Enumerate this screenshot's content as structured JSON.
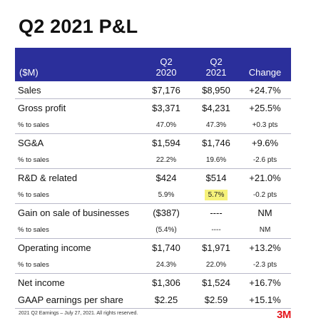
{
  "title": "Q2 2021 P&L",
  "table": {
    "headers": {
      "label": "($M)",
      "q2_2020": [
        "Q2",
        "2020"
      ],
      "q2_2021": [
        "Q2",
        "2021"
      ],
      "change": "Change"
    },
    "rows": [
      {
        "label": "Sales",
        "q2_2020": "$7,176",
        "q2_2021": "$8,950",
        "change": "+24.7%"
      },
      {
        "label": "Gross profit",
        "q2_2020": "$3,371",
        "q2_2021": "$4,231",
        "change": "+25.5%"
      },
      {
        "label": "% to sales",
        "q2_2020": "47.0%",
        "q2_2021": "47.3%",
        "change": "+0.3 pts"
      },
      {
        "label": "SG&A",
        "q2_2020": "$1,594",
        "q2_2021": "$1,746",
        "change": "+9.6%"
      },
      {
        "label": "% to sales",
        "q2_2020": "22.2%",
        "q2_2021": "19.6%",
        "change": "-2.6 pts"
      },
      {
        "label": "R&D & related",
        "q2_2020": "$424",
        "q2_2021": "$514",
        "change": "+21.0%"
      },
      {
        "label": "% to sales",
        "q2_2020": "5.9%",
        "q2_2021": "5.7%",
        "change": "-0.2 pts"
      },
      {
        "label": "Gain on sale of businesses",
        "q2_2020": "($387)",
        "q2_2021": "----",
        "change": "NM"
      },
      {
        "label": "% to sales",
        "q2_2020": "(5.4%)",
        "q2_2021": "----",
        "change": "NM"
      },
      {
        "label": "Operating income",
        "q2_2020": "$1,740",
        "q2_2021": "$1,971",
        "change": "+13.2%"
      },
      {
        "label": "% to sales",
        "q2_2020": "24.3%",
        "q2_2021": "22.0%",
        "change": "-2.3 pts"
      },
      {
        "label": "Net income",
        "q2_2020": "$1,306",
        "q2_2021": "$1,524",
        "change": "+16.7%"
      },
      {
        "label": "GAAP earnings per share",
        "q2_2020": "$2.25",
        "q2_2021": "$2.59",
        "change": "+15.1%"
      }
    ]
  },
  "highlight_color": "#f6f27a",
  "header_color": "#2b2f9b",
  "footer": "2021 Q2 Earnings – July 27, 2021. All rights reserved.",
  "logo": "3M",
  "logo_color": "#e4141b"
}
